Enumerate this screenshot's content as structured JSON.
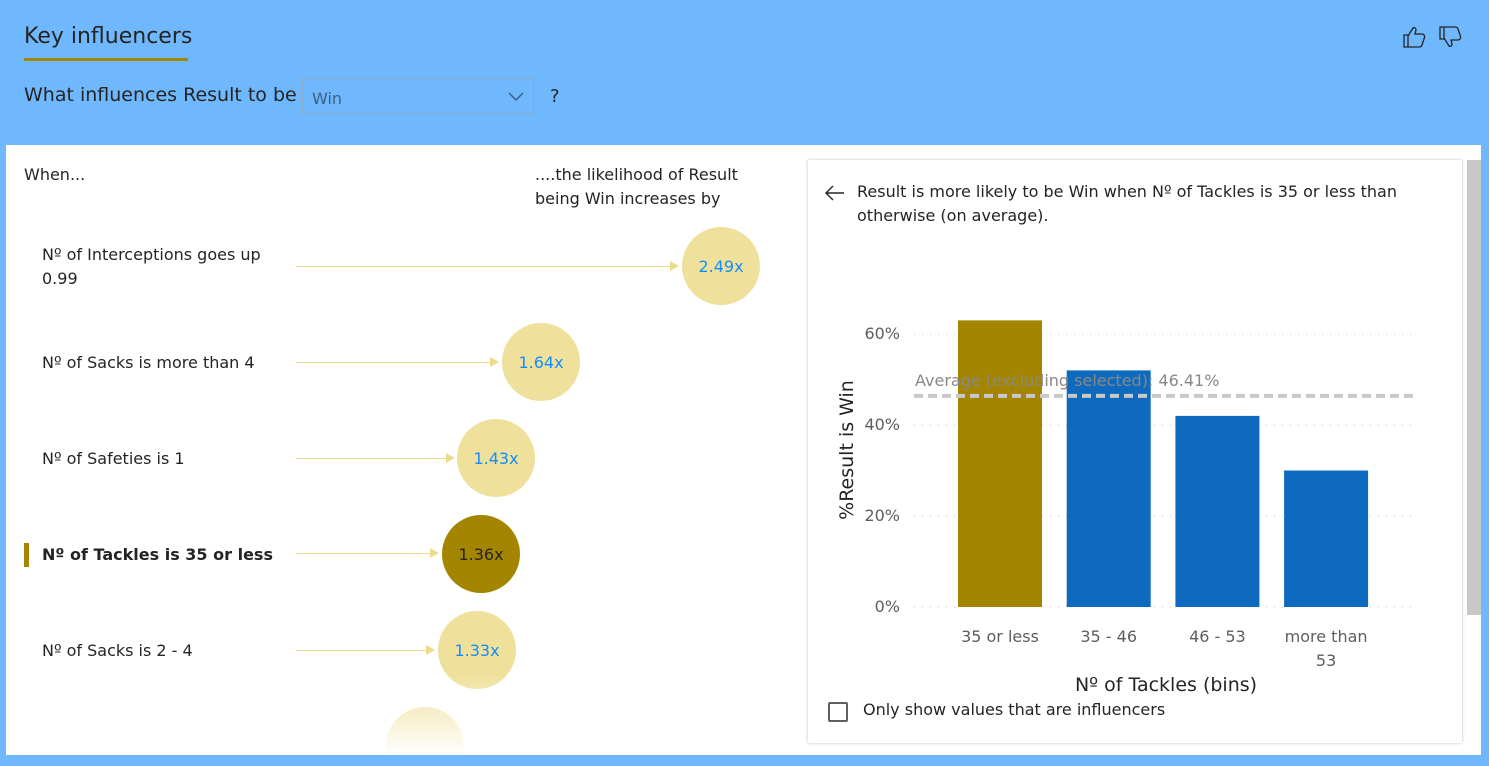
{
  "header": {
    "title": "Key influencers",
    "question_prefix": "What influences Result to be",
    "dropdown_value": "Win",
    "question_suffix": "?",
    "icons": [
      "thumbs-up-icon",
      "thumbs-down-icon",
      "chevron-down-icon"
    ]
  },
  "left": {
    "when_label": "When...",
    "likelihood_label": "....the likelihood of Result being Win increases by",
    "influencers": [
      {
        "label": "Nº of Interceptions goes up 0.99",
        "value": "2.49x",
        "selected": false
      },
      {
        "label": "Nº of Sacks is more than 4",
        "value": "1.64x",
        "selected": false
      },
      {
        "label": "Nº of Safeties is 1",
        "value": "1.43x",
        "selected": false
      },
      {
        "label": "Nº of Tackles is 35 or less",
        "value": "1.36x",
        "selected": true
      },
      {
        "label": "Nº of Sacks is 2 - 4",
        "value": "1.33x",
        "selected": false
      }
    ]
  },
  "panel": {
    "description": "Result is more likely to be Win when Nº of Tackles is 35 or less than otherwise (on average).",
    "checkbox_label": "Only show values that are influencers",
    "checkbox_checked": false,
    "back_icon": "arrow-left-icon"
  },
  "chart_data": {
    "type": "bar",
    "categories": [
      "35 or less",
      "35 - 46",
      "46 - 53",
      "more than 53"
    ],
    "values": [
      63,
      52,
      42,
      30
    ],
    "highlighted_index": 0,
    "xlabel": "Nº of Tackles (bins)",
    "ylabel": "%Result is Win",
    "ylim": [
      0,
      70
    ],
    "yticks": [
      "0%",
      "20%",
      "40%",
      "60%"
    ],
    "average_value": 46.41,
    "average_label": "Average (excluding selected): 46.41%",
    "grid": true,
    "colors": {
      "highlight": "#a38500",
      "bar": "#0d6abf",
      "average": "#c8c8c8"
    }
  },
  "colors": {
    "header_bg": "#6fb8fe",
    "accent": "#a38500",
    "bubble": "#efe19c",
    "value_text": "#118dff"
  }
}
